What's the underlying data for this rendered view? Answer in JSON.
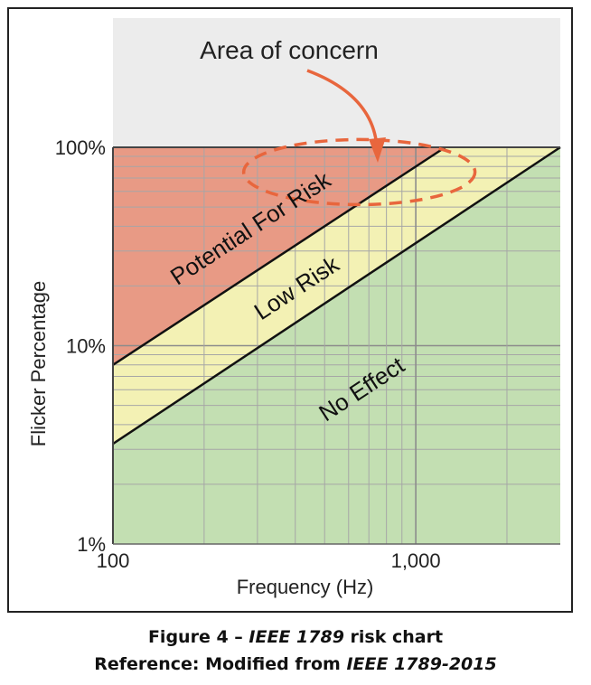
{
  "chart_data": {
    "type": "area",
    "title": "",
    "xlabel": "Frequency (Hz)",
    "ylabel": "Flicker Percentage",
    "x_scale": "log",
    "y_scale": "log",
    "xlim": [
      100,
      3000
    ],
    "ylim": [
      1,
      100
    ],
    "x_ticks": [
      {
        "value": 100,
        "label": "100"
      },
      {
        "value": 1000,
        "label": "1,000"
      }
    ],
    "y_ticks": [
      {
        "value": 100,
        "label": "100%"
      },
      {
        "value": 10,
        "label": "10%"
      },
      {
        "value": 1,
        "label": "1%"
      }
    ],
    "grid": true,
    "boundaries": [
      {
        "name": "upper",
        "points": [
          [
            100,
            8
          ],
          [
            1250,
            100
          ]
        ]
      },
      {
        "name": "lower",
        "points": [
          [
            100,
            3.2
          ],
          [
            3000,
            100
          ]
        ]
      }
    ],
    "regions": [
      {
        "label": "Potential For Risk",
        "color": "#e89a85"
      },
      {
        "label": "Low Risk",
        "color": "#f3f1b4"
      },
      {
        "label": "No Effect",
        "color": "#c3dfb2"
      }
    ],
    "annotation": {
      "text": "Area of concern",
      "ellipse_center": [
        800,
        75
      ]
    }
  },
  "caption": {
    "line1_prefix": "Figure 4 – ",
    "line1_italic": "IEEE 1789",
    "line1_suffix": " risk chart",
    "line2_prefix": "Reference: Modified from ",
    "line2_italic": "IEEE 1789-2015"
  }
}
